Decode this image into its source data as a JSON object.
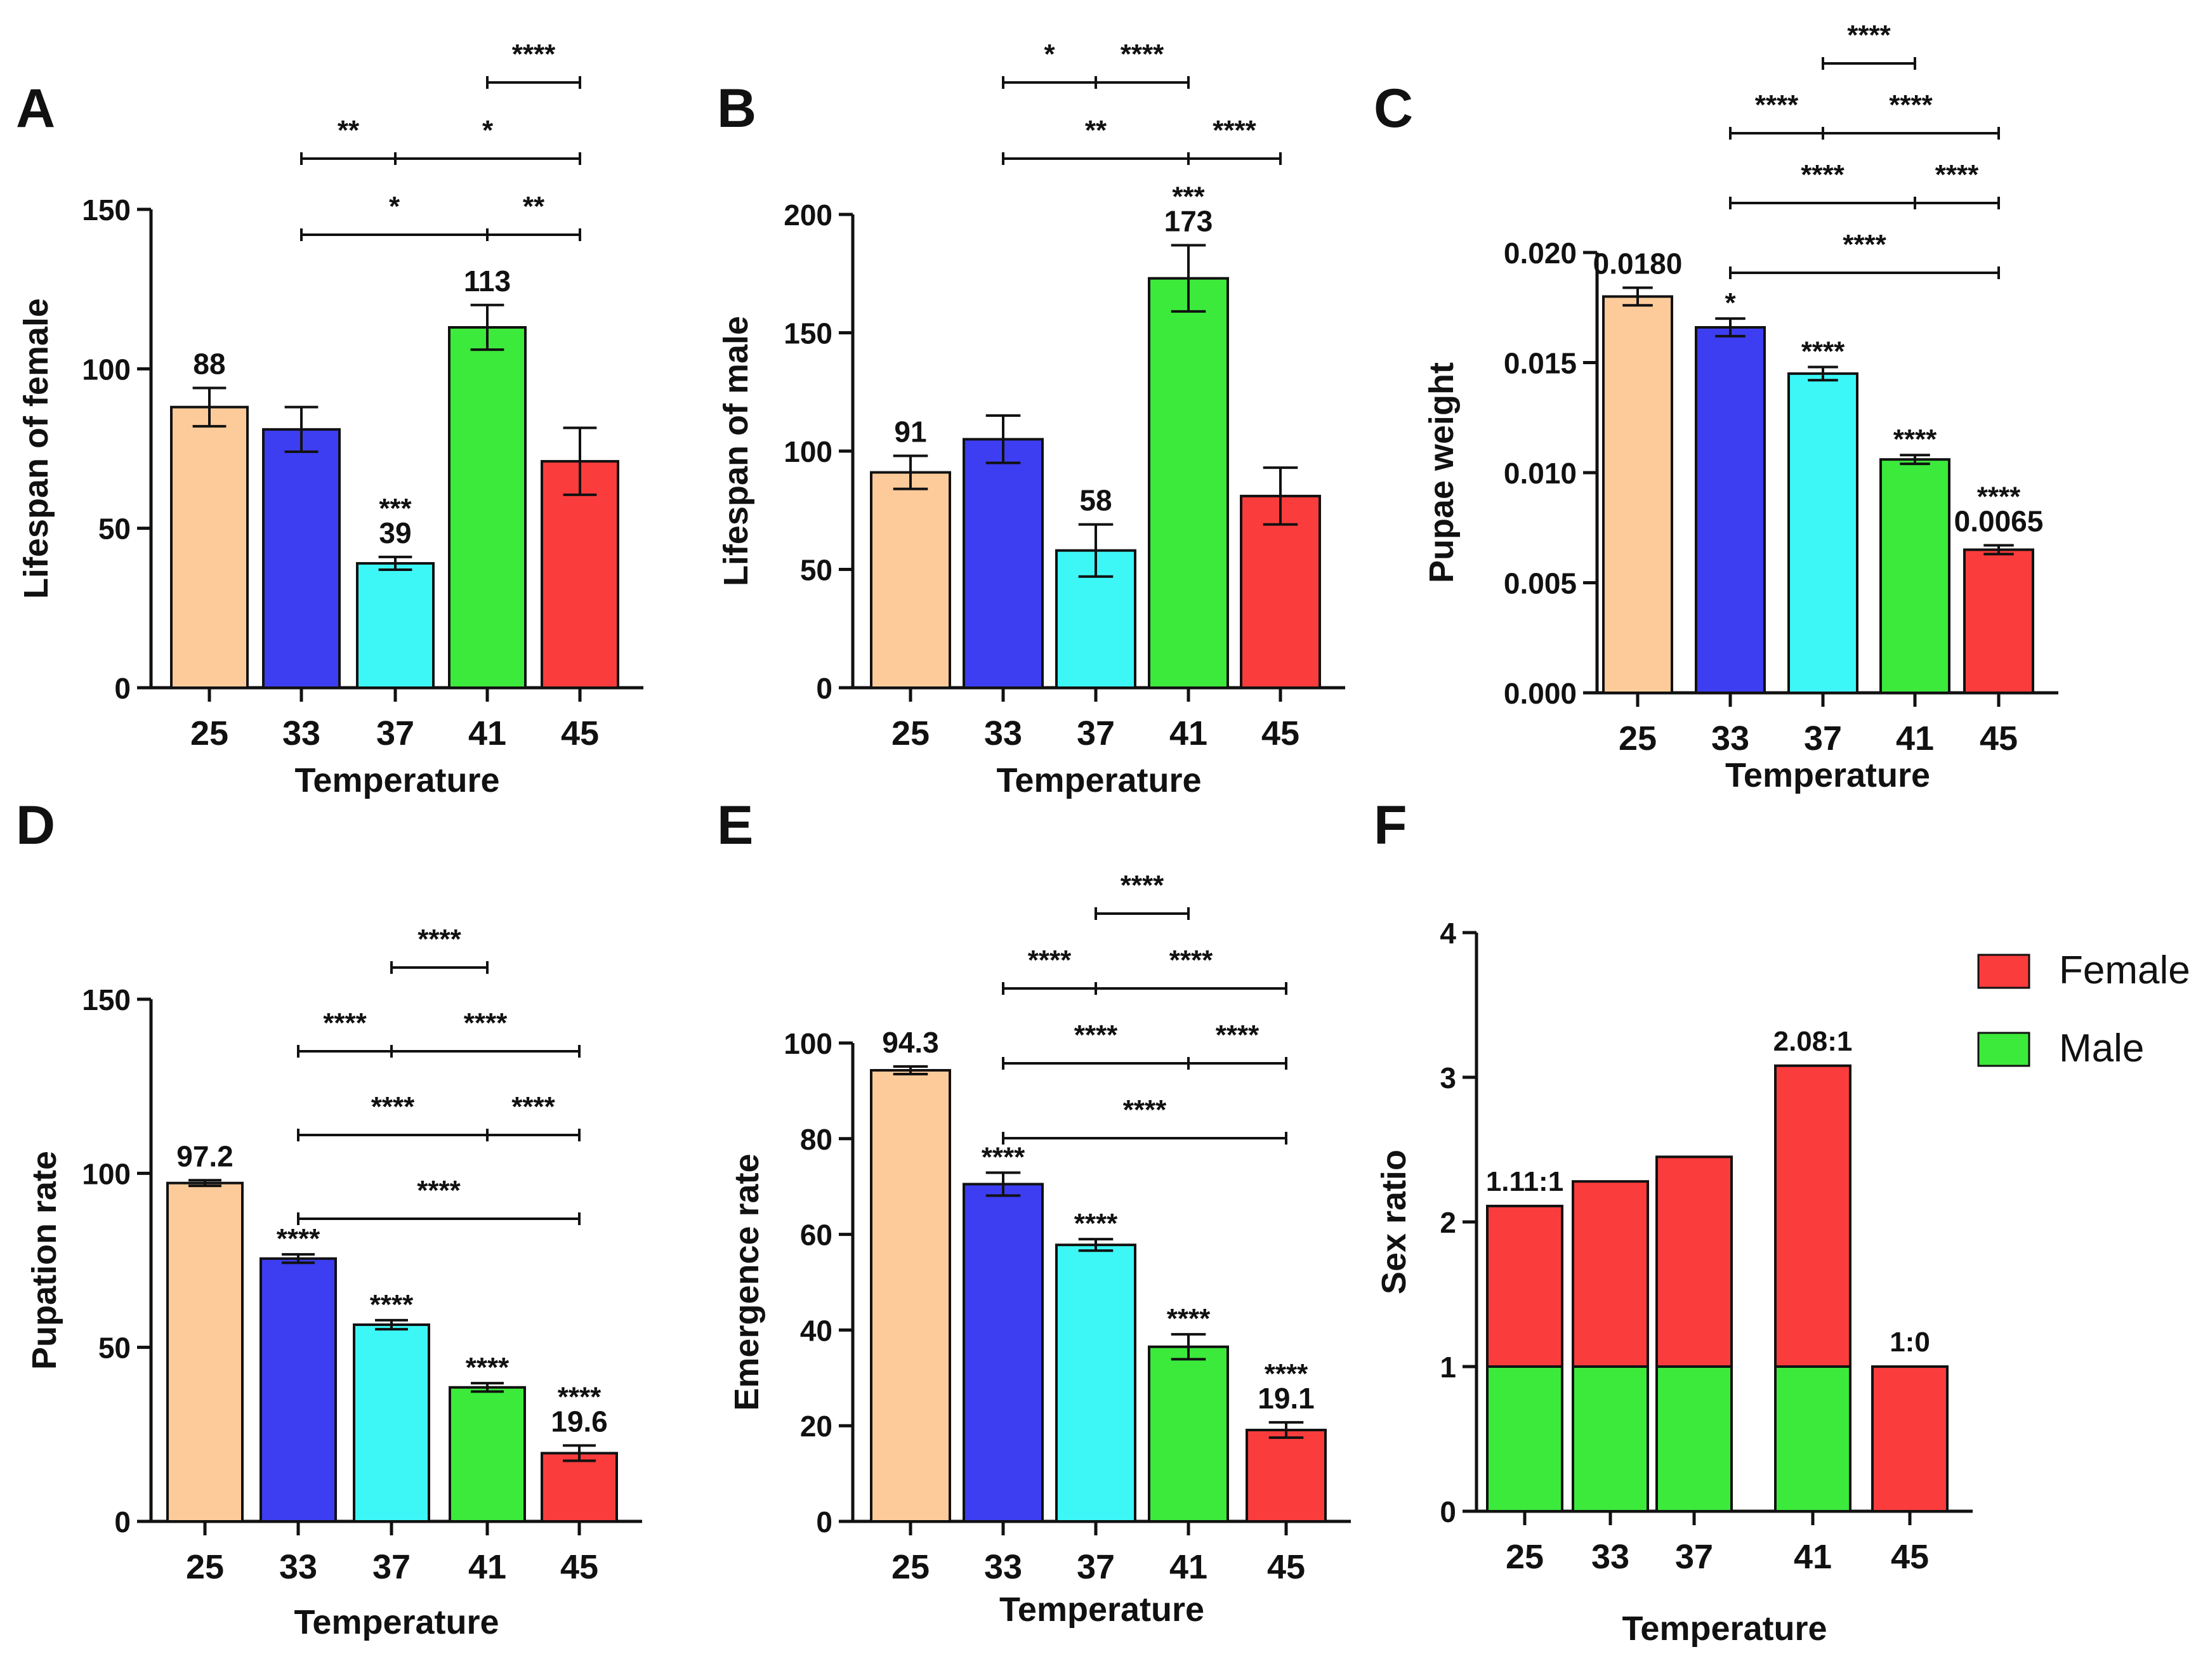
{
  "colors": {
    "25": "#FDCB9A",
    "33": "#3D3DF2",
    "37": "#3DF7F7",
    "41": "#3CEA3C",
    "45": "#FB3C3C",
    "female": "#FB3C3C",
    "male": "#3CEA3C"
  },
  "chart_data": [
    {
      "id": "A",
      "panel_label": "A",
      "type": "bar",
      "categories": [
        "25",
        "33",
        "37",
        "41",
        "45"
      ],
      "values": [
        88,
        81,
        39,
        113,
        71
      ],
      "errors": [
        6,
        7,
        2,
        7,
        10.5
      ],
      "value_labels": [
        "88",
        "",
        "39",
        "113",
        ""
      ],
      "sig_above_bars": [
        "",
        "",
        "***",
        "",
        ""
      ],
      "xlabel": "Temperature",
      "ylabel": "Lifespan of female",
      "ylim": [
        0,
        150
      ],
      "yticks": [
        0,
        50,
        100,
        150
      ],
      "ytick_labels": [
        "0",
        "50",
        "100",
        "150"
      ],
      "brackets": [
        {
          "from": 3,
          "to": 4,
          "mid": null,
          "labels": [
            "****"
          ]
        },
        {
          "from": 1,
          "to": 4,
          "mid": 2,
          "labels": [
            "**",
            "*"
          ]
        },
        {
          "from": 1,
          "to": 4,
          "mid": 3,
          "labels": [
            "*",
            "**"
          ]
        }
      ]
    },
    {
      "id": "B",
      "panel_label": "B",
      "type": "bar",
      "categories": [
        "25",
        "33",
        "37",
        "41",
        "45"
      ],
      "values": [
        91,
        105,
        58,
        173,
        81
      ],
      "errors": [
        7,
        10,
        11,
        14,
        12
      ],
      "value_labels": [
        "91",
        "",
        "58",
        "173",
        ""
      ],
      "sig_above_bars": [
        "",
        "",
        "",
        "***",
        ""
      ],
      "xlabel": "",
      "ylabel": "Lifespan of male",
      "ylim": [
        0,
        200
      ],
      "yticks": [
        0,
        50,
        100,
        150,
        200
      ],
      "ytick_labels": [
        "0",
        "50",
        "100",
        "150",
        "200"
      ],
      "brackets": [
        {
          "from": 1,
          "to": 3,
          "mid": 2,
          "labels": [
            "*",
            "****"
          ]
        },
        {
          "from": 1,
          "to": 4,
          "mid": 3,
          "labels": [
            "**",
            "****"
          ]
        }
      ]
    },
    {
      "id": "C",
      "panel_label": "C",
      "type": "bar",
      "categories": [
        "25",
        "33",
        "37",
        "41",
        "45"
      ],
      "values": [
        0.018,
        0.0166,
        0.0145,
        0.0106,
        0.0065
      ],
      "errors": [
        0.0004,
        0.0004,
        0.0003,
        0.0002,
        0.0002
      ],
      "value_labels": [
        "0.0180",
        "",
        "",
        "",
        "0.0065"
      ],
      "sig_above_bars": [
        "",
        "*",
        "****",
        "****",
        "****"
      ],
      "xlabel": "Temperature",
      "ylabel": "Pupae weight",
      "ylim": [
        0,
        0.02
      ],
      "yticks": [
        0,
        0.005,
        0.01,
        0.015,
        0.02
      ],
      "ytick_labels": [
        "0.000",
        "0.005",
        "0.010",
        "0.015",
        "0.020"
      ],
      "brackets": [
        {
          "from": 2,
          "to": 3,
          "mid": null,
          "labels": [
            "****"
          ]
        },
        {
          "from": 1,
          "to": 4,
          "mid": 2,
          "labels": [
            "****",
            "****"
          ]
        },
        {
          "from": 1,
          "to": 4,
          "mid": 3,
          "labels": [
            "****",
            "****"
          ]
        },
        {
          "from": 1,
          "to": 4,
          "mid": null,
          "labels": [
            "****"
          ]
        }
      ]
    },
    {
      "id": "D",
      "panel_label": "D",
      "type": "bar",
      "categories": [
        "25",
        "33",
        "37",
        "41",
        "45"
      ],
      "values": [
        97.2,
        75.5,
        56.5,
        38.5,
        19.6
      ],
      "errors": [
        0.8,
        1.2,
        1.3,
        1.2,
        2.2
      ],
      "value_labels": [
        "97.2",
        "",
        "",
        "",
        "19.6"
      ],
      "sig_above_bars": [
        "",
        "****",
        "****",
        "****",
        "****"
      ],
      "xlabel": "Temperature",
      "ylabel": "Pupation rate",
      "ylim": [
        0,
        150
      ],
      "yticks": [
        0,
        50,
        100,
        150
      ],
      "ytick_labels": [
        "0",
        "50",
        "100",
        "150"
      ],
      "brackets": [
        {
          "from": 2,
          "to": 3,
          "mid": null,
          "labels": [
            "****"
          ]
        },
        {
          "from": 1,
          "to": 4,
          "mid": 2,
          "labels": [
            "****",
            "****"
          ]
        },
        {
          "from": 1,
          "to": 4,
          "mid": 3,
          "labels": [
            "****",
            "****"
          ]
        },
        {
          "from": 1,
          "to": 4,
          "mid": null,
          "labels": [
            "****"
          ]
        }
      ]
    },
    {
      "id": "E",
      "panel_label": "E",
      "type": "bar",
      "categories": [
        "25",
        "33",
        "37",
        "41",
        "45"
      ],
      "values": [
        94.3,
        70.5,
        57.8,
        36.5,
        19.1
      ],
      "errors": [
        0.8,
        2.4,
        1.2,
        2.6,
        1.6
      ],
      "value_labels": [
        "94.3",
        "",
        "",
        "",
        "19.1"
      ],
      "sig_above_bars": [
        "",
        "****",
        "****",
        "****",
        "****"
      ],
      "xlabel": "Temperature",
      "ylabel": "Emergence rate",
      "ylim": [
        0,
        100
      ],
      "yticks": [
        0,
        20,
        40,
        60,
        80,
        100
      ],
      "ytick_labels": [
        "0",
        "20",
        "40",
        "60",
        "80",
        "100"
      ],
      "brackets": [
        {
          "from": 2,
          "to": 3,
          "mid": null,
          "labels": [
            "****"
          ]
        },
        {
          "from": 1,
          "to": 4,
          "mid": 2,
          "labels": [
            "****",
            "****"
          ]
        },
        {
          "from": 1,
          "to": 4,
          "mid": 3,
          "labels": [
            "****",
            "****"
          ]
        },
        {
          "from": 1,
          "to": 4,
          "mid": null,
          "labels": [
            "****"
          ]
        }
      ]
    },
    {
      "id": "F",
      "panel_label": "F",
      "type": "bar",
      "stacked": true,
      "categories": [
        "25",
        "33",
        "37",
        "41",
        "45"
      ],
      "series": [
        {
          "name": "Male",
          "values": [
            1,
            1,
            1,
            1,
            0
          ]
        },
        {
          "name": "Female",
          "values": [
            1.11,
            1.28,
            1.45,
            2.08,
            1
          ]
        }
      ],
      "ratio_labels": [
        "1.11:1",
        "",
        "",
        "2.08:1",
        "1:0"
      ],
      "xlabel": "Temperature",
      "ylabel": "Sex ratio",
      "ylim": [
        0,
        4
      ],
      "yticks": [
        0,
        1,
        2,
        3,
        4
      ],
      "ytick_labels": [
        "0",
        "1",
        "2",
        "3",
        "4"
      ],
      "legend": [
        "Female",
        "Male"
      ],
      "legend_position": "top-right"
    }
  ]
}
